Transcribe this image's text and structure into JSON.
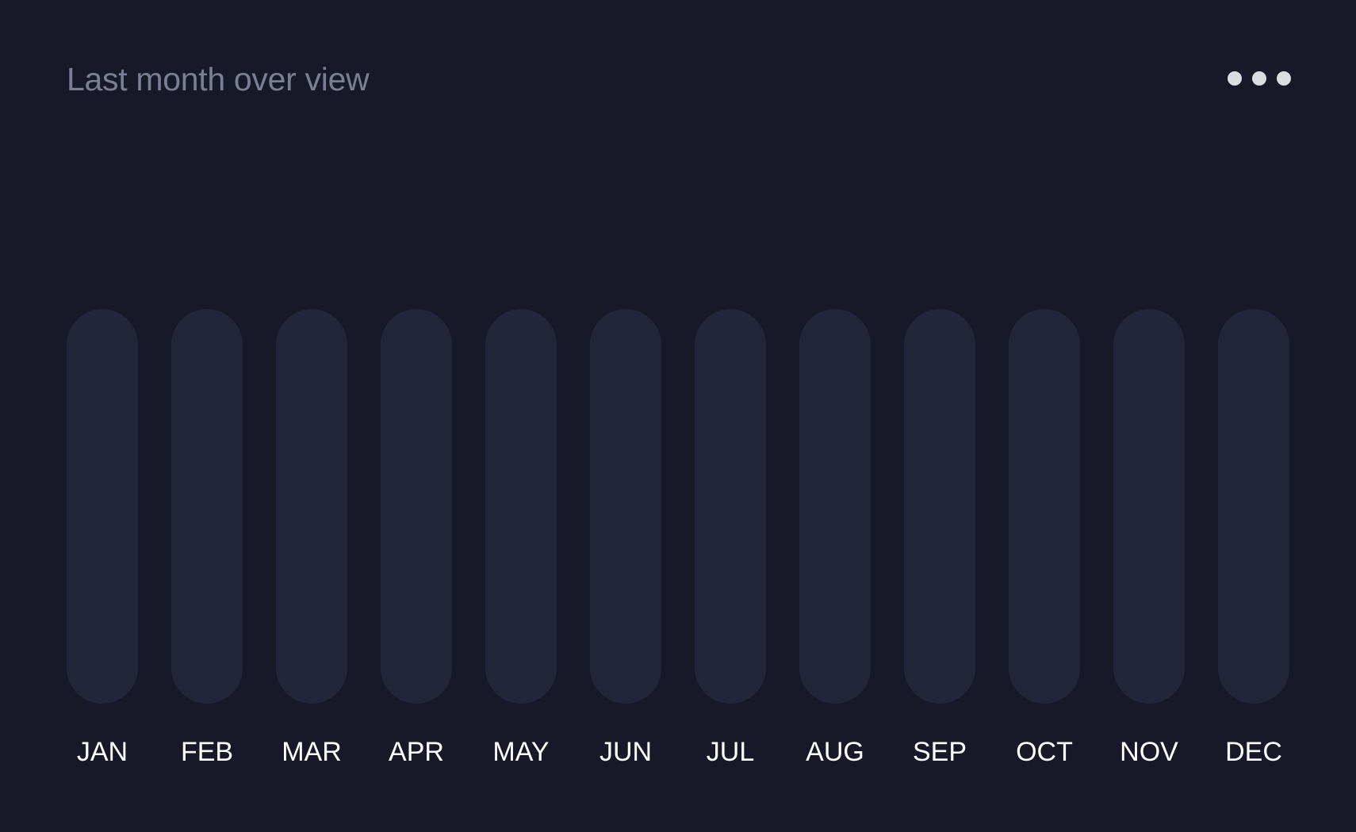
{
  "header": {
    "title": "Last month over view"
  },
  "more_menu": {
    "icon": "more-horizontal-icon"
  },
  "colors": {
    "background": "#171928",
    "track": "#23253a",
    "title": "#7b7f93",
    "label": "#ffffff",
    "dots": "#dcdde2"
  },
  "chart_data": {
    "type": "bar",
    "categories": [
      "JAN",
      "FEB",
      "MAR",
      "APR",
      "MAY",
      "JUN",
      "JUL",
      "AUG",
      "SEP",
      "OCT",
      "NOV",
      "DEC"
    ],
    "series": [
      {
        "values": [
          null,
          null,
          null,
          null,
          null,
          null,
          null,
          null,
          null,
          null,
          null,
          null
        ]
      }
    ],
    "title": "Last month over view",
    "xlabel": "",
    "ylabel": "",
    "grid": false,
    "legend": "none"
  }
}
